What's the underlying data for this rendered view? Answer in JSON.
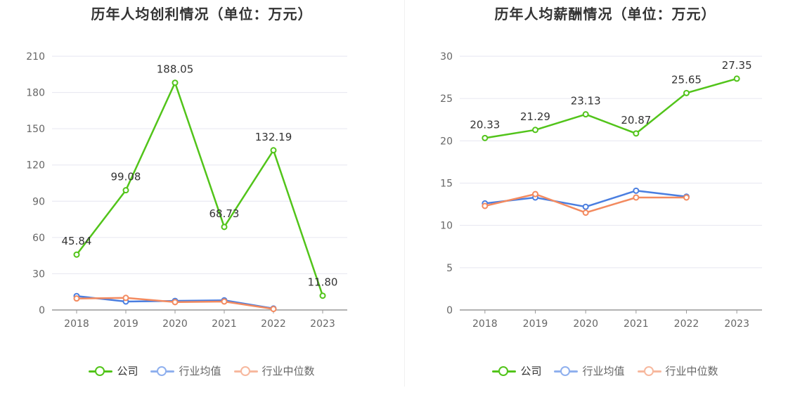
{
  "colors": {
    "company": "#52c41a",
    "industry_avg": "#4a7ee0",
    "industry_median": "#f38a5f",
    "grid": "#e6e6f0",
    "axis": "#999999"
  },
  "legend": {
    "company": "公司",
    "industry_avg": "行业均值",
    "industry_median": "行业中位数"
  },
  "chart_data": [
    {
      "type": "line",
      "title": "历年人均创利情况（单位：万元）",
      "categories": [
        "2018",
        "2019",
        "2020",
        "2021",
        "2022",
        "2023"
      ],
      "ylim": [
        0,
        210
      ],
      "yticks": [
        0,
        30,
        60,
        90,
        120,
        150,
        180,
        210
      ],
      "grid": true,
      "legend_position": "bottom",
      "series": [
        {
          "name": "公司",
          "values": [
            45.84,
            99.08,
            188.05,
            68.73,
            132.19,
            11.8
          ],
          "labels": [
            "45.84",
            "99.08",
            "188.05",
            "68.73",
            "132.19",
            "11.80"
          ]
        },
        {
          "name": "行业均值",
          "values": [
            11.5,
            7.0,
            7.5,
            8.0,
            1.2,
            null
          ]
        },
        {
          "name": "行业中位数",
          "values": [
            9.5,
            10.0,
            6.5,
            7.0,
            0.8,
            null
          ]
        }
      ]
    },
    {
      "type": "line",
      "title": "历年人均薪酬情况（单位：万元）",
      "categories": [
        "2018",
        "2019",
        "2020",
        "2021",
        "2022",
        "2023"
      ],
      "ylim": [
        0,
        30
      ],
      "yticks": [
        0,
        5,
        10,
        15,
        20,
        25,
        30
      ],
      "grid": true,
      "legend_position": "bottom",
      "series": [
        {
          "name": "公司",
          "values": [
            20.33,
            21.29,
            23.13,
            20.87,
            25.65,
            27.35
          ],
          "labels": [
            "20.33",
            "21.29",
            "23.13",
            "20.87",
            "25.65",
            "27.35"
          ]
        },
        {
          "name": "行业均值",
          "values": [
            12.6,
            13.3,
            12.2,
            14.1,
            13.4,
            null
          ]
        },
        {
          "name": "行业中位数",
          "values": [
            12.3,
            13.7,
            11.5,
            13.3,
            13.3,
            null
          ]
        }
      ]
    }
  ]
}
